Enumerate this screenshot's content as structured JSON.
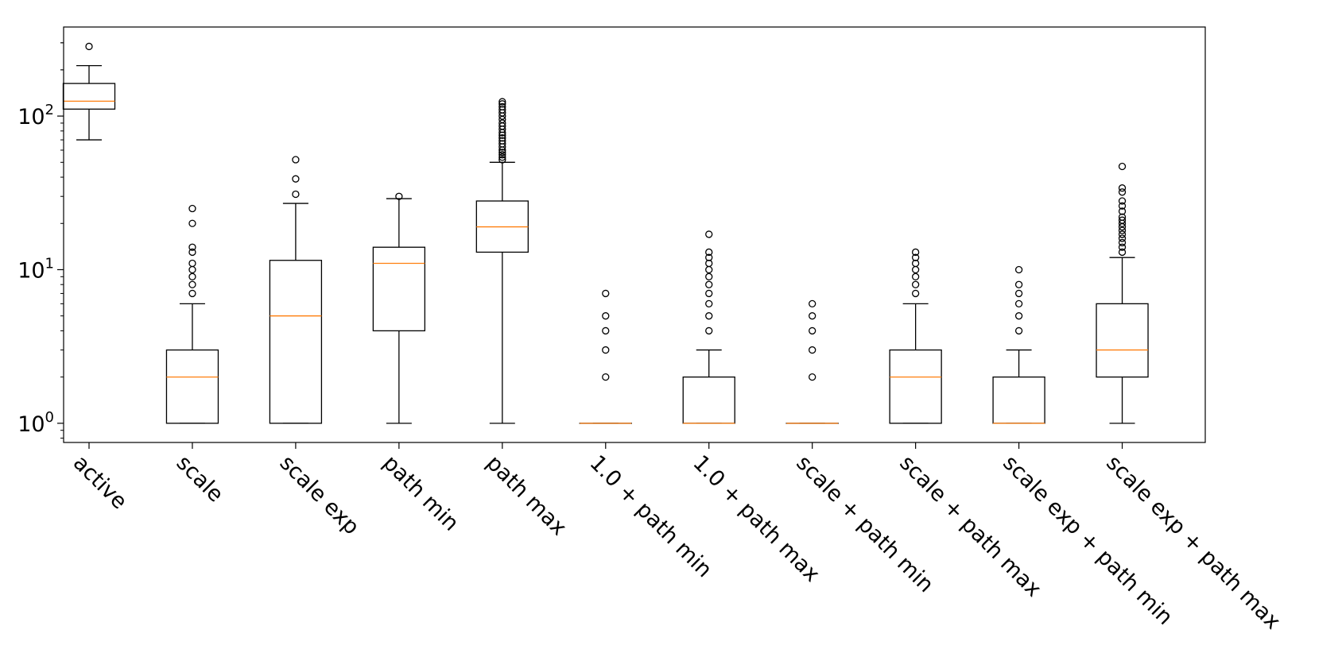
{
  "chart_data": {
    "type": "boxplot",
    "title": "",
    "xlabel": "",
    "ylabel": "",
    "yscale": "log",
    "ylim": [
      0.75,
      380
    ],
    "yticks": [
      {
        "value": 1,
        "base": "10",
        "exp": "0"
      },
      {
        "value": 10,
        "base": "10",
        "exp": "1"
      },
      {
        "value": 100,
        "base": "10",
        "exp": "2"
      }
    ],
    "colors": {
      "box": "#000000",
      "median": "#ff7f0e",
      "flier": "#000000"
    },
    "categories": [
      "active",
      "scale",
      "scale exp",
      "path min",
      "path max",
      "1.0 + path min",
      "1.0 + path max",
      "scale + path min",
      "scale + path max",
      "scale exp + path min",
      "scale exp + path max"
    ],
    "boxes": [
      {
        "whislo": 70,
        "q1": 111,
        "med": 125,
        "q3": 163,
        "whishi": 213,
        "fliers": [
          284
        ]
      },
      {
        "whislo": 1,
        "q1": 1,
        "med": 2,
        "q3": 3,
        "whishi": 6,
        "fliers": [
          7,
          8,
          9,
          10,
          11,
          13,
          14,
          20,
          25
        ]
      },
      {
        "whislo": 1,
        "q1": 1,
        "med": 5,
        "q3": 11.5,
        "whishi": 27,
        "fliers": [
          31,
          39,
          52
        ]
      },
      {
        "whislo": 1,
        "q1": 4,
        "med": 11,
        "q3": 14,
        "whishi": 29,
        "fliers": [
          30
        ]
      },
      {
        "whislo": 1,
        "q1": 13,
        "med": 19,
        "q3": 28,
        "whishi": 50,
        "fliers": [
          52,
          54,
          56,
          58,
          60,
          63,
          66,
          69,
          72,
          75,
          78,
          82,
          86,
          90,
          95,
          100,
          105,
          110,
          115,
          120,
          124
        ]
      },
      {
        "whislo": 1,
        "q1": 1,
        "med": 1,
        "q3": 1,
        "whishi": 1,
        "fliers": [
          2,
          3,
          4,
          5,
          7
        ]
      },
      {
        "whislo": 1,
        "q1": 1,
        "med": 1,
        "q3": 2,
        "whishi": 3,
        "fliers": [
          4,
          5,
          6,
          7,
          8,
          9,
          10,
          11,
          12,
          13,
          17
        ]
      },
      {
        "whislo": 1,
        "q1": 1,
        "med": 1,
        "q3": 1,
        "whishi": 1,
        "fliers": [
          2,
          3,
          4,
          5,
          6
        ]
      },
      {
        "whislo": 1,
        "q1": 1,
        "med": 2,
        "q3": 3,
        "whishi": 6,
        "fliers": [
          7,
          8,
          9,
          10,
          11,
          12,
          13
        ]
      },
      {
        "whislo": 1,
        "q1": 1,
        "med": 1,
        "q3": 2,
        "whishi": 3,
        "fliers": [
          4,
          5,
          6,
          7,
          8,
          10
        ]
      },
      {
        "whislo": 1,
        "q1": 2,
        "med": 3,
        "q3": 6,
        "whishi": 12,
        "fliers": [
          13,
          14,
          15,
          16,
          17,
          18,
          19,
          20,
          21,
          22,
          24,
          26,
          28,
          32,
          34,
          47
        ]
      }
    ]
  }
}
